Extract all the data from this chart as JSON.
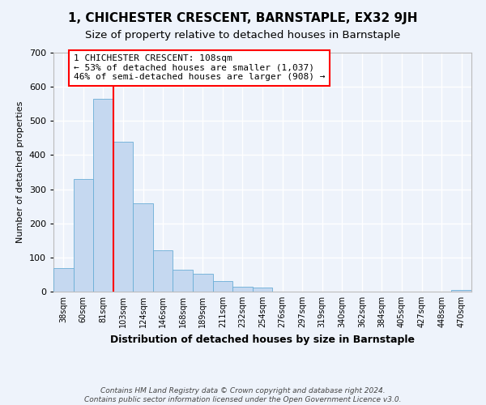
{
  "title": "1, CHICHESTER CRESCENT, BARNSTAPLE, EX32 9JH",
  "subtitle": "Size of property relative to detached houses in Barnstaple",
  "xlabel": "Distribution of detached houses by size in Barnstaple",
  "ylabel": "Number of detached properties",
  "bin_labels": [
    "38sqm",
    "60sqm",
    "81sqm",
    "103sqm",
    "124sqm",
    "146sqm",
    "168sqm",
    "189sqm",
    "211sqm",
    "232sqm",
    "254sqm",
    "276sqm",
    "297sqm",
    "319sqm",
    "340sqm",
    "362sqm",
    "384sqm",
    "405sqm",
    "427sqm",
    "448sqm",
    "470sqm"
  ],
  "bar_values": [
    70,
    330,
    565,
    440,
    258,
    122,
    63,
    52,
    30,
    15,
    12,
    0,
    0,
    0,
    0,
    0,
    0,
    0,
    0,
    0,
    5
  ],
  "bar_color": "#c5d8f0",
  "bar_edge_color": "#6aaed6",
  "vline_color": "red",
  "vline_x_index": 3,
  "annotation_text": "1 CHICHESTER CRESCENT: 108sqm\n← 53% of detached houses are smaller (1,037)\n46% of semi-detached houses are larger (908) →",
  "annotation_box_color": "white",
  "annotation_box_edge_color": "red",
  "ylim": [
    0,
    700
  ],
  "yticks": [
    0,
    100,
    200,
    300,
    400,
    500,
    600,
    700
  ],
  "footer_text": "Contains HM Land Registry data © Crown copyright and database right 2024.\nContains public sector information licensed under the Open Government Licence v3.0.",
  "background_color": "#eef3fb",
  "grid_color": "#ffffff",
  "title_fontsize": 11,
  "subtitle_fontsize": 9.5,
  "xlabel_fontsize": 9,
  "ylabel_fontsize": 8,
  "footer_fontsize": 6.5,
  "tick_fontsize": 7,
  "ytick_fontsize": 8,
  "annotation_fontsize": 8
}
